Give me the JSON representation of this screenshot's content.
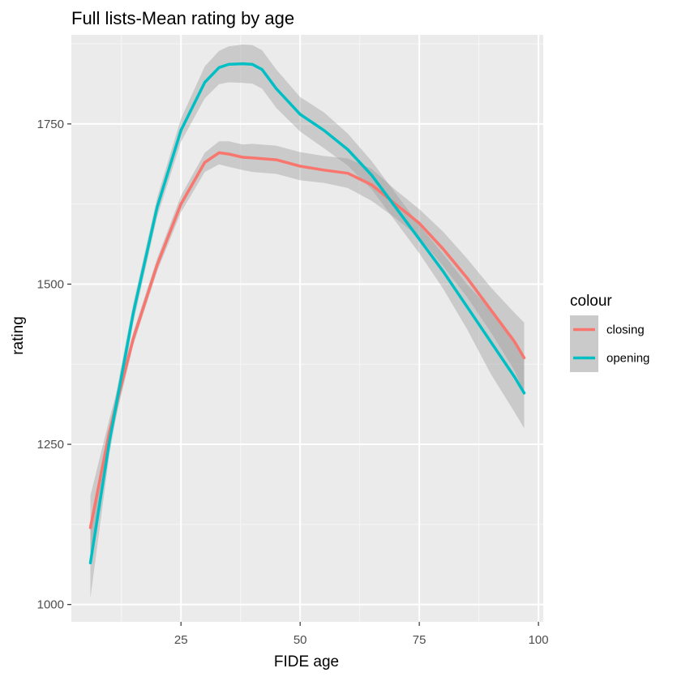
{
  "chart_data": {
    "type": "line",
    "title": "Full lists-Mean rating by age",
    "xlabel": "FIDE age",
    "ylabel": "rating",
    "xlim": [
      2,
      101
    ],
    "ylim": [
      973,
      1889
    ],
    "x_ticks": [
      25,
      50,
      75,
      100
    ],
    "x_minor_ticks": [
      12.5,
      37.5,
      62.5,
      87.5
    ],
    "y_ticks": [
      1000,
      1250,
      1500,
      1750
    ],
    "y_minor_ticks": [
      1125,
      1375,
      1625,
      1875
    ],
    "grid": true,
    "legend": {
      "title": "colour",
      "placement": "right",
      "entries": [
        "closing",
        "opening"
      ]
    },
    "series": [
      {
        "name": "closing",
        "color": "#F8766D",
        "x": [
          6,
          10,
          15,
          20,
          25,
          30,
          33,
          35,
          38,
          40,
          45,
          50,
          55,
          60,
          65,
          70,
          75,
          80,
          85,
          90,
          95,
          97
        ],
        "y": [
          1120,
          1270,
          1415,
          1530,
          1625,
          1690,
          1705,
          1703,
          1698,
          1697,
          1694,
          1684,
          1678,
          1673,
          1655,
          1625,
          1595,
          1555,
          1510,
          1460,
          1410,
          1385
        ],
        "ci_lower": [
          1070,
          1250,
          1405,
          1520,
          1612,
          1675,
          1687,
          1683,
          1678,
          1675,
          1672,
          1662,
          1658,
          1650,
          1630,
          1603,
          1573,
          1528,
          1480,
          1425,
          1365,
          1330
        ],
        "ci_upper": [
          1170,
          1290,
          1425,
          1540,
          1638,
          1705,
          1723,
          1723,
          1718,
          1719,
          1716,
          1706,
          1700,
          1696,
          1680,
          1647,
          1617,
          1582,
          1540,
          1495,
          1455,
          1440
        ]
      },
      {
        "name": "opening",
        "color": "#00BFC4",
        "x": [
          6,
          10,
          15,
          20,
          25,
          30,
          33,
          35,
          38,
          40,
          42,
          45,
          50,
          55,
          60,
          65,
          70,
          75,
          80,
          85,
          90,
          95,
          97
        ],
        "y": [
          1065,
          1255,
          1455,
          1620,
          1740,
          1815,
          1838,
          1843,
          1844,
          1843,
          1835,
          1805,
          1765,
          1740,
          1710,
          1670,
          1620,
          1570,
          1520,
          1465,
          1410,
          1355,
          1330
        ],
        "ci_lower": [
          1010,
          1235,
          1440,
          1605,
          1722,
          1790,
          1812,
          1815,
          1814,
          1813,
          1805,
          1775,
          1738,
          1712,
          1685,
          1648,
          1598,
          1548,
          1493,
          1430,
          1360,
          1300,
          1275
        ],
        "ci_upper": [
          1120,
          1275,
          1470,
          1635,
          1758,
          1840,
          1864,
          1871,
          1874,
          1873,
          1865,
          1835,
          1792,
          1768,
          1735,
          1692,
          1642,
          1592,
          1547,
          1500,
          1460,
          1410,
          1385
        ]
      }
    ]
  }
}
